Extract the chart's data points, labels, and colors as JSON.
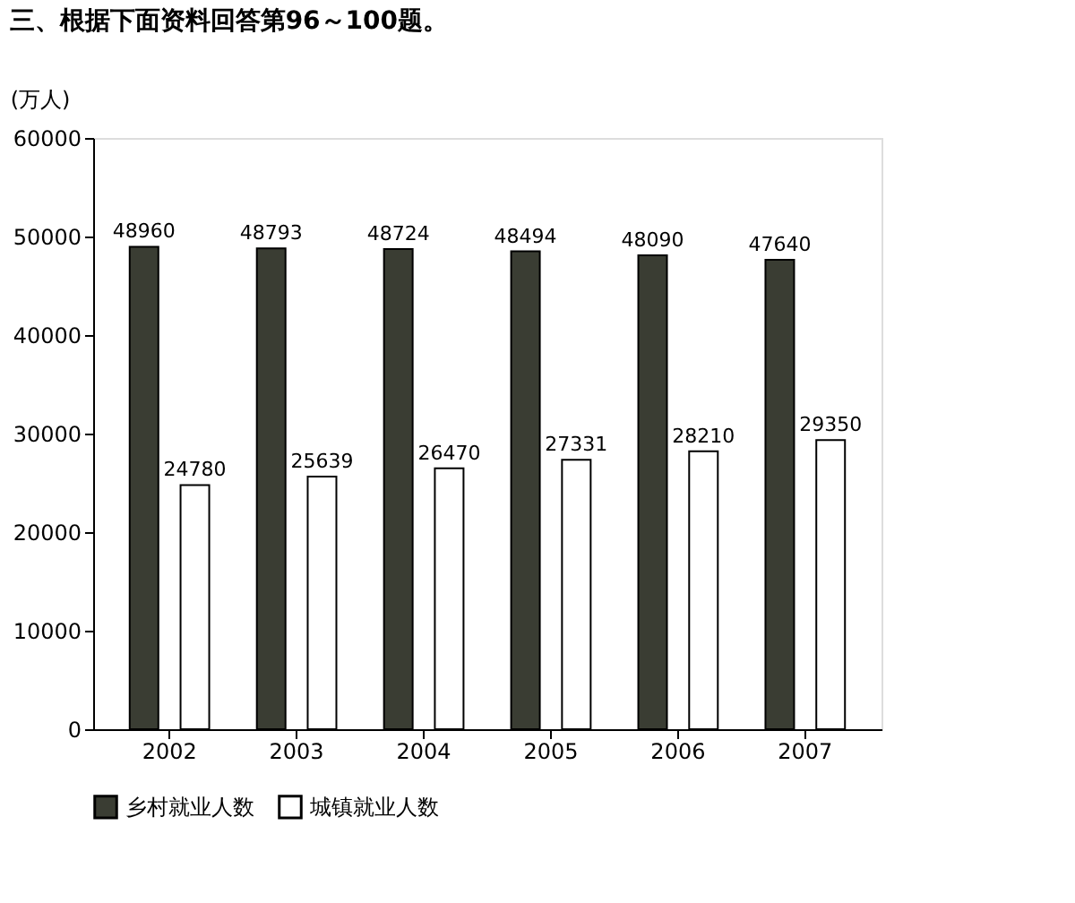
{
  "chart_data": {
    "type": "bar",
    "title": "三、根据下面资料回答第96～100题。",
    "ylabel": "(万人)",
    "categories": [
      "2002",
      "2003",
      "2004",
      "2005",
      "2006",
      "2007"
    ],
    "series": [
      {
        "name": "乡村就业人数",
        "color": "#3a3d33",
        "values": [
          48960,
          48793,
          48724,
          48494,
          48090,
          47640
        ]
      },
      {
        "name": "城镇就业人数",
        "color": "#ffffff",
        "values": [
          24780,
          25639,
          26470,
          27331,
          28210,
          29350
        ]
      }
    ],
    "ylim": [
      0,
      60000
    ],
    "yticks": [
      0,
      10000,
      20000,
      30000,
      40000,
      50000,
      60000
    ],
    "data_labels": true,
    "grid": false,
    "legend": "bottom"
  }
}
